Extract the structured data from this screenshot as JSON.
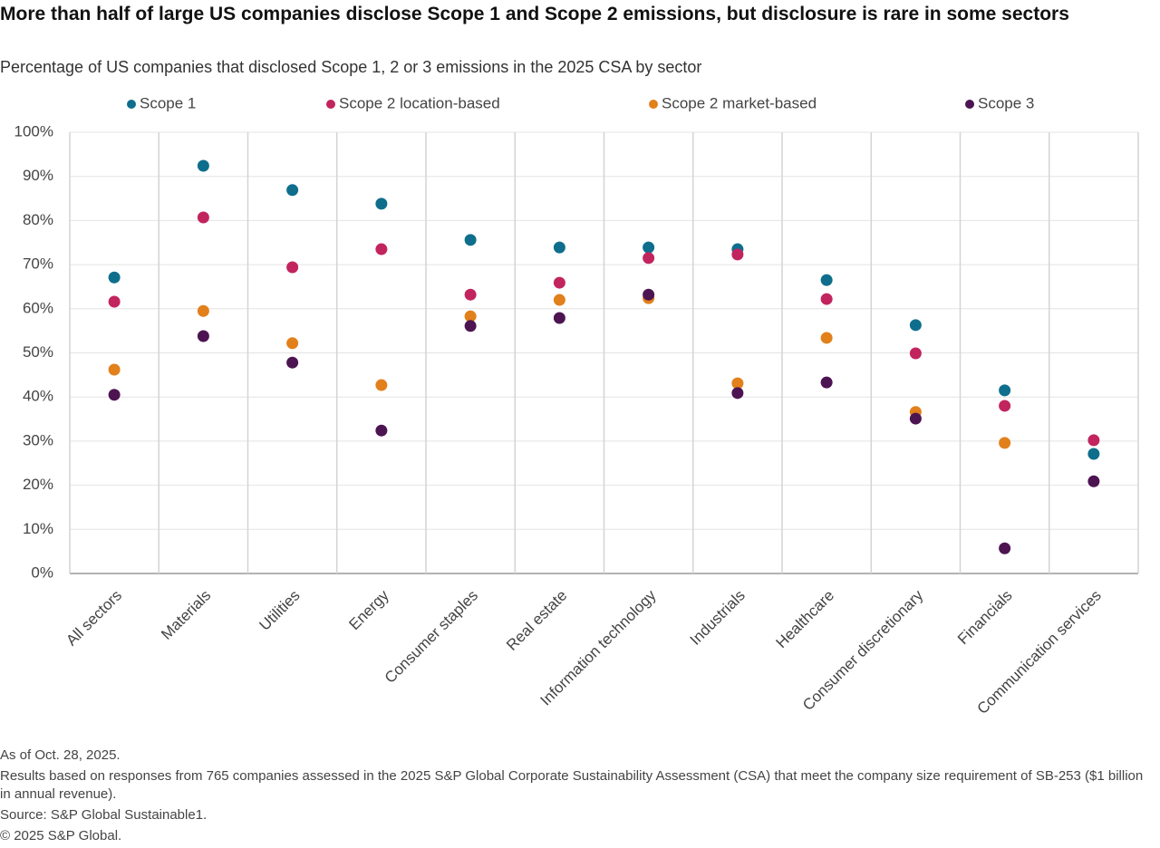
{
  "chart_data": {
    "type": "dot",
    "title": "More than half of large US companies disclose Scope 1 and Scope 2 emissions, but disclosure is rare in some sectors",
    "subtitle": "Percentage of US companies that disclosed Scope 1, 2 or 3 emissions in the 2025 CSA by sector",
    "categories": [
      "All sectors",
      "Materials",
      "Utilities",
      "Energy",
      "Consumer staples",
      "Real estate",
      "Information technology",
      "Industrials",
      "Healthcare",
      "Consumer discretionary",
      "Financials",
      "Communication services"
    ],
    "series": [
      {
        "name": "Scope 1",
        "color": "#0f6e8c",
        "values": [
          67.1,
          92.4,
          86.9,
          83.8,
          75.6,
          73.9,
          73.9,
          73.5,
          66.5,
          56.3,
          41.5,
          27.1
        ]
      },
      {
        "name": "Scope 2 location-based",
        "color": "#c2245e",
        "values": [
          61.6,
          80.7,
          69.4,
          73.5,
          63.2,
          65.9,
          71.5,
          72.3,
          62.2,
          49.9,
          38.0,
          30.2
        ]
      },
      {
        "name": "Scope 2 market-based",
        "color": "#e2801b",
        "values": [
          46.2,
          59.5,
          52.2,
          42.7,
          58.3,
          62.0,
          62.4,
          43.1,
          53.4,
          36.6,
          29.6,
          null
        ]
      },
      {
        "name": "Scope 3",
        "color": "#4d1452",
        "values": [
          40.5,
          53.8,
          47.8,
          32.4,
          56.1,
          57.9,
          63.2,
          40.9,
          43.3,
          35.1,
          5.7,
          20.9
        ]
      }
    ],
    "ylim": [
      0,
      100
    ],
    "yticks": [
      {
        "value": 0,
        "label": "0%"
      },
      {
        "value": 10,
        "label": "10%"
      },
      {
        "value": 20,
        "label": "20%"
      },
      {
        "value": 30,
        "label": "30%"
      },
      {
        "value": 40,
        "label": "40%"
      },
      {
        "value": 50,
        "label": "50%"
      },
      {
        "value": 60,
        "label": "60%"
      },
      {
        "value": 70,
        "label": "70%"
      },
      {
        "value": 80,
        "label": "80%"
      },
      {
        "value": 90,
        "label": "90%"
      },
      {
        "value": 100,
        "label": "100%"
      }
    ],
    "grid": true,
    "legend": "top",
    "notes": [
      "As of Oct. 28, 2025.",
      "Results based on responses from 765 companies assessed in the 2025 S&P Global Corporate Sustainability Assessment (CSA) that meet the company size requirement of SB-253 ($1 billion in annual revenue).",
      "Source: S&P Global Sustainable1.",
      "© 2025 S&P Global."
    ]
  }
}
